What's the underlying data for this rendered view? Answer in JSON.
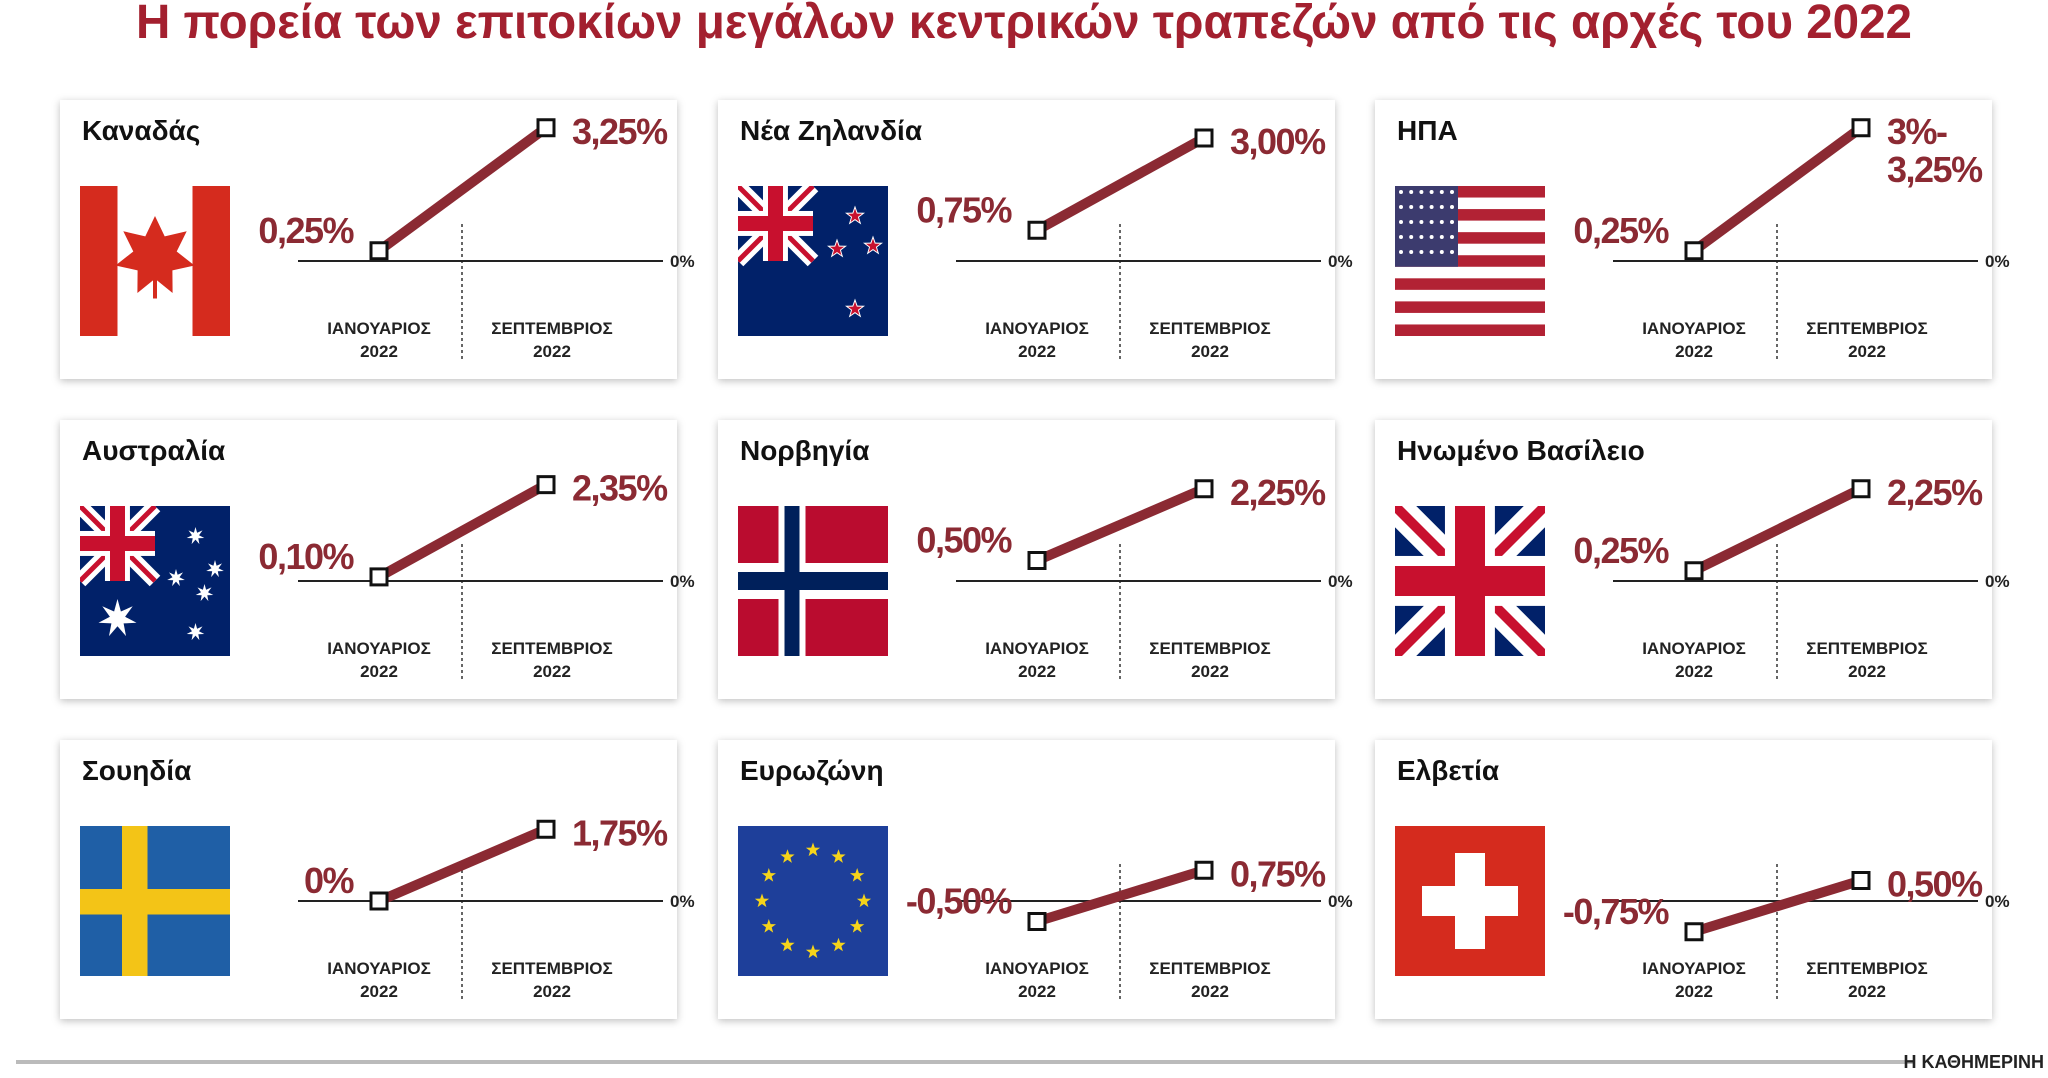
{
  "title": "Η πορεία των επιτοκίων μεγάλων κεντρικών τραπεζών από τις αρχές του 2022",
  "footer": "Η ΚΑΘΗΜΕΡΙΝΗ",
  "chart_data": [
    {
      "type": "line",
      "title": "Καναδάς",
      "categories": [
        "ΙΑΝΟΥΑΡΙΟΣ\n2022",
        "ΣΕΠΤΕΜΒΡΙΟΣ\n2022"
      ],
      "values": [
        0.25,
        3.25
      ],
      "value_labels": [
        "0,25%",
        "3,25%"
      ],
      "color": "#8b2a33",
      "ylim": [
        -1,
        4
      ],
      "yticks": [
        {
          "value": 0,
          "label": "0%"
        }
      ]
    },
    {
      "type": "line",
      "title": "Νέα Ζηλανδία",
      "categories": [
        "ΙΑΝΟΥΑΡΙΟΣ\n2022",
        "ΣΕΠΤΕΜΒΡΙΟΣ\n2022"
      ],
      "values": [
        0.75,
        3.0
      ],
      "value_labels": [
        "0,75%",
        "3,00%"
      ],
      "color": "#8b2a33",
      "ylim": [
        -1,
        4
      ],
      "yticks": [
        {
          "value": 0,
          "label": "0%"
        }
      ]
    },
    {
      "type": "line",
      "title": "ΗΠΑ",
      "categories": [
        "ΙΑΝΟΥΑΡΙΟΣ\n2022",
        "ΣΕΠΤΕΜΒΡΙΟΣ\n2022"
      ],
      "values": [
        0.25,
        3.25
      ],
      "value_labels": [
        "0,25%",
        "3%-\n3,25%"
      ],
      "color": "#8b2a33",
      "ylim": [
        -1,
        4
      ],
      "yticks": [
        {
          "value": 0,
          "label": "0%"
        }
      ]
    },
    {
      "type": "line",
      "title": "Αυστραλία",
      "categories": [
        "ΙΑΝΟΥΑΡΙΟΣ\n2022",
        "ΣΕΠΤΕΜΒΡΙΟΣ\n2022"
      ],
      "values": [
        0.1,
        2.35
      ],
      "value_labels": [
        "0,10%",
        "2,35%"
      ],
      "color": "#8b2a33",
      "ylim": [
        -1,
        4
      ],
      "yticks": [
        {
          "value": 0,
          "label": "0%"
        }
      ]
    },
    {
      "type": "line",
      "title": "Νορβηγία",
      "categories": [
        "ΙΑΝΟΥΑΡΙΟΣ\n2022",
        "ΣΕΠΤΕΜΒΡΙΟΣ\n2022"
      ],
      "values": [
        0.5,
        2.25
      ],
      "value_labels": [
        "0,50%",
        "2,25%"
      ],
      "color": "#8b2a33",
      "ylim": [
        -1,
        4
      ],
      "yticks": [
        {
          "value": 0,
          "label": "0%"
        }
      ]
    },
    {
      "type": "line",
      "title": "Ηνωμένο Βασίλειο",
      "categories": [
        "ΙΑΝΟΥΑΡΙΟΣ\n2022",
        "ΣΕΠΤΕΜΒΡΙΟΣ\n2022"
      ],
      "values": [
        0.25,
        2.25
      ],
      "value_labels": [
        "0,25%",
        "2,25%"
      ],
      "color": "#8b2a33",
      "ylim": [
        -1,
        4
      ],
      "yticks": [
        {
          "value": 0,
          "label": "0%"
        }
      ]
    },
    {
      "type": "line",
      "title": "Σουηδία",
      "categories": [
        "ΙΑΝΟΥΑΡΙΟΣ\n2022",
        "ΣΕΠΤΕΜΒΡΙΟΣ\n2022"
      ],
      "values": [
        0,
        1.75
      ],
      "value_labels": [
        "0%",
        "1,75%"
      ],
      "color": "#8b2a33",
      "ylim": [
        -1,
        4
      ],
      "yticks": [
        {
          "value": 0,
          "label": "0%"
        }
      ]
    },
    {
      "type": "line",
      "title": "Ευρωζώνη",
      "categories": [
        "ΙΑΝΟΥΑΡΙΟΣ\n2022",
        "ΣΕΠΤΕΜΒΡΙΟΣ\n2022"
      ],
      "values": [
        -0.5,
        0.75
      ],
      "value_labels": [
        "-0,50%",
        "0,75%"
      ],
      "color": "#8b2a33",
      "ylim": [
        -1,
        4
      ],
      "yticks": [
        {
          "value": 0,
          "label": "0%"
        }
      ]
    },
    {
      "type": "line",
      "title": "Ελβετία",
      "categories": [
        "ΙΑΝΟΥΑΡΙΟΣ\n2022",
        "ΣΕΠΤΕΜΒΡΙΟΣ\n2022"
      ],
      "values": [
        -0.75,
        0.5
      ],
      "value_labels": [
        "-0,75%",
        "0,50%"
      ],
      "color": "#8b2a33",
      "ylim": [
        -1,
        4
      ],
      "yticks": [
        {
          "value": 0,
          "label": "0%"
        }
      ]
    }
  ]
}
